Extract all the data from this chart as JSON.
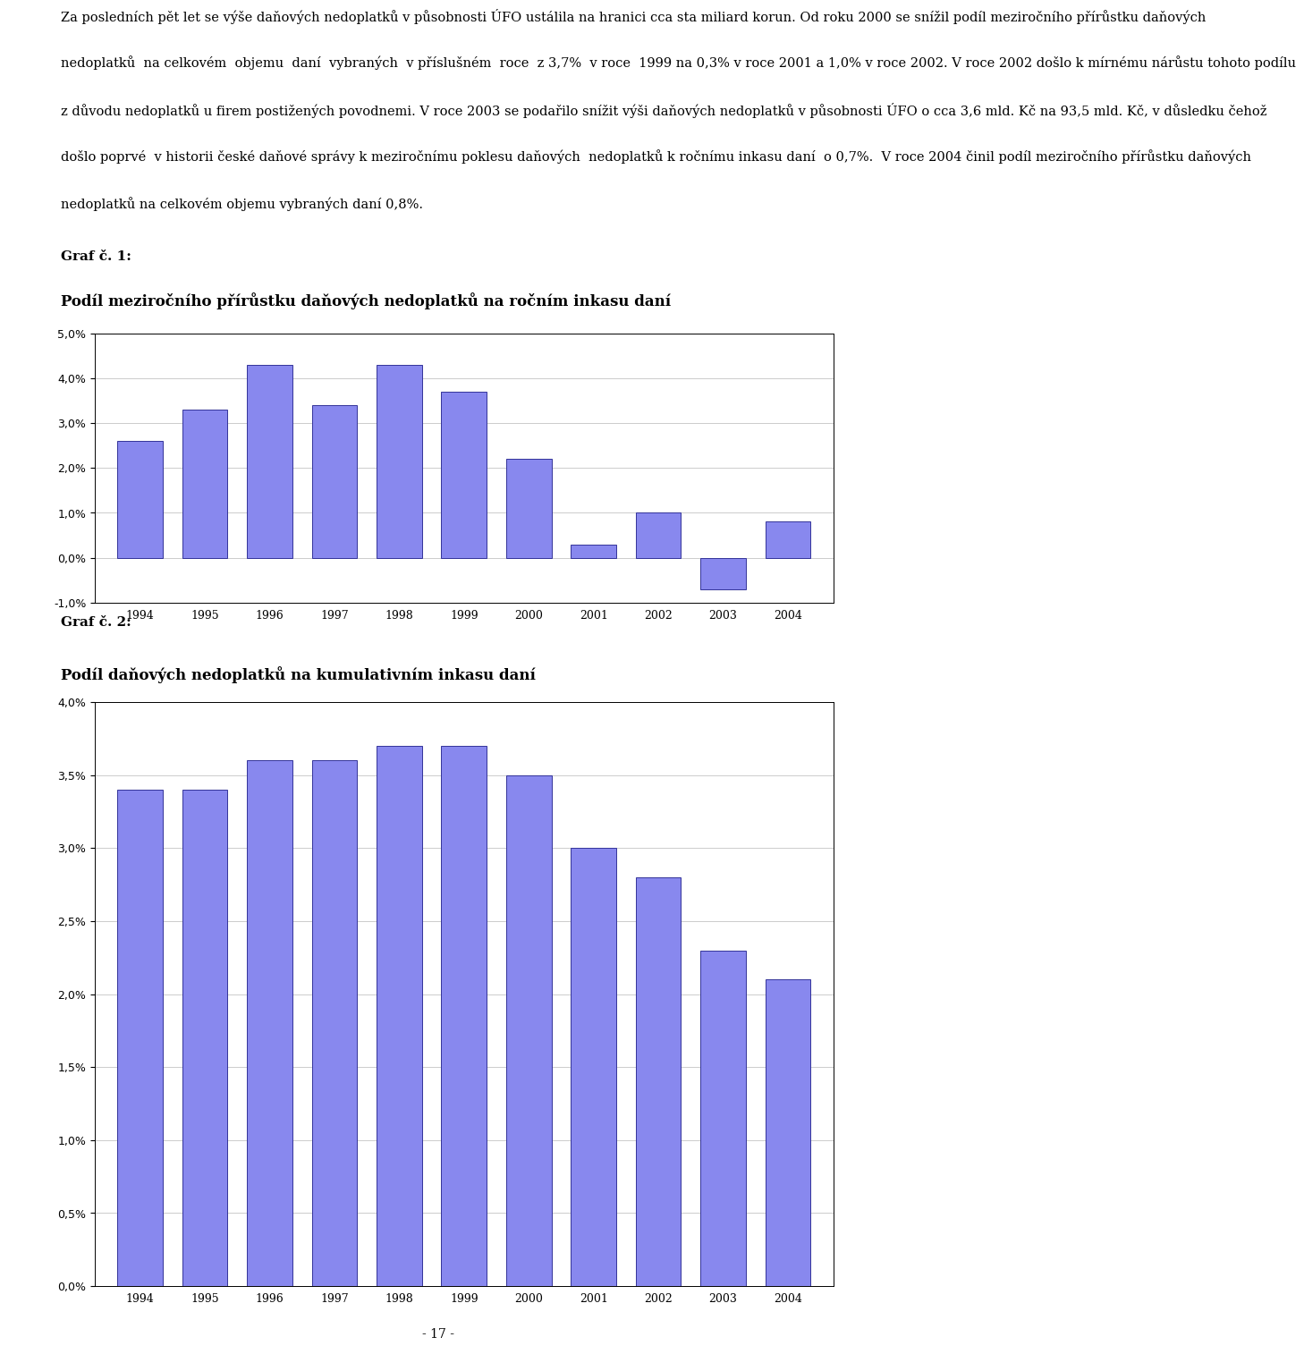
{
  "text_block_lines": [
    "Za posledních pět let se výše daňových nedoplatků v působnosti ÚFO ustálila na hranici cca sta miliard korun. Od roku 2000 se snížil podíl meziročního přírůstku daňových",
    "nedoplatků  na celkovém  objemu  daní  vybraných  v příslušném  roce  z 3,7%  v roce  1999 na 0,3% v roce 2001 a 1,0% v roce 2002. V roce 2002 došlo k mírnému nárůstu tohoto podílu",
    "z důvodu nedoplatků u firem postižených povodnemi. V roce 2003 se podařilo snížit výši daňových nedoplatků v působnosti ÚFO o cca 3,6 mld. Kč na 93,5 mld. Kč, v důsledku čehož",
    "došlo poprvé  v historii české daňové správy k meziročnímu poklesu daňových  nedoplatků k ročnímu inkasu daní  o 0,7%.  V roce 2004 činil podíl meziročního přírůstku daňových",
    "nedoplatků na celkovém objemu vybraných daní 0,8%."
  ],
  "chart1_label": "Graf č. 1:",
  "chart1_title": "Podíl meziročního přírůstku daňových nedoplatků na ročním inkasu daní",
  "chart2_label": "Graf č. 2:",
  "chart2_title": "Podíl daňových nedoplatků na kumulativním inkasu daní",
  "years": [
    1994,
    1995,
    1996,
    1997,
    1998,
    1999,
    2000,
    2001,
    2002,
    2003,
    2004
  ],
  "chart1_values": [
    0.026,
    0.033,
    0.043,
    0.034,
    0.043,
    0.037,
    0.022,
    0.003,
    0.01,
    -0.007,
    0.008
  ],
  "chart2_values": [
    0.034,
    0.034,
    0.036,
    0.036,
    0.037,
    0.037,
    0.035,
    0.03,
    0.028,
    0.023,
    0.021
  ],
  "bar_color": "#8888ee",
  "bar_edge_color": "#333399",
  "chart1_ylim": [
    -0.01,
    0.05
  ],
  "chart1_yticks": [
    -0.01,
    0.0,
    0.01,
    0.02,
    0.03,
    0.04,
    0.05
  ],
  "chart2_ylim": [
    0.0,
    0.04
  ],
  "chart2_yticks": [
    0.0,
    0.005,
    0.01,
    0.015,
    0.02,
    0.025,
    0.03,
    0.035,
    0.04
  ],
  "page_number": "- 17 -",
  "background_color": "#ffffff",
  "text_fontsize": 10.5,
  "label_fontsize": 11,
  "title_fontsize": 12
}
